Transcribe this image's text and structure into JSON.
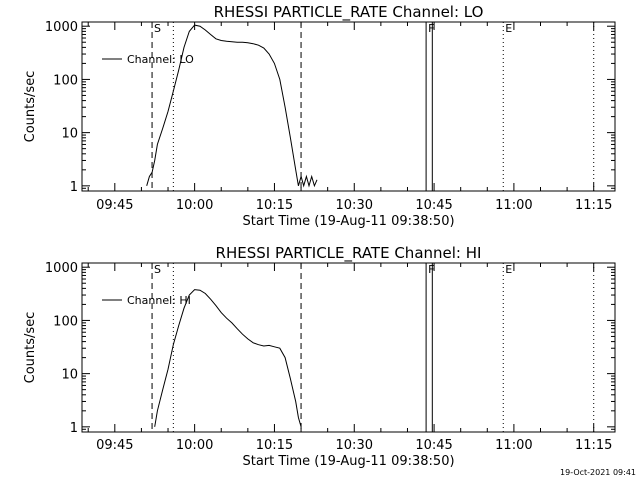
{
  "footer": {
    "timestamp": "19-Oct-2021 09:41"
  },
  "chart_data": [
    {
      "type": "line",
      "title": "RHESSI PARTICLE_RATE Channel: LO",
      "xlabel": "Start Time (19-Aug-11 09:38:50)",
      "ylabel": "Counts/sec",
      "y_scale": "log",
      "ylim": [
        0.8,
        1200
      ],
      "x_unit": "time of day",
      "xlim": [
        "09:38:50",
        "11:19:00"
      ],
      "x_ticks": [
        "09:45",
        "10:00",
        "10:15",
        "10:30",
        "10:45",
        "11:00",
        "11:15"
      ],
      "y_ticks": [
        "1",
        "10",
        "100",
        "1000"
      ],
      "legend": {
        "placement": "top-left",
        "entries": [
          "Channel: LO"
        ]
      },
      "markers": [
        {
          "label": "S",
          "time": "09:52:00",
          "style": "dashed"
        },
        {
          "label": "",
          "time": "09:56:00",
          "style": "dotted"
        },
        {
          "label": "",
          "time": "10:20:00",
          "style": "dashed"
        },
        {
          "label": "F",
          "time": "10:43:30",
          "style": "solid"
        },
        {
          "label": "",
          "time": "10:44:40",
          "style": "solid"
        },
        {
          "label": "E",
          "time": "10:58:00",
          "style": "dotted"
        },
        {
          "label": "",
          "time": "11:15:00",
          "style": "dotted"
        }
      ],
      "series": [
        {
          "name": "Channel: LO",
          "x": [
            "09:51:00",
            "09:51:30",
            "09:52:00",
            "09:52:30",
            "09:53:00",
            "09:54:00",
            "09:55:00",
            "09:56:00",
            "09:57:00",
            "09:58:00",
            "09:59:00",
            "10:00:00",
            "10:01:00",
            "10:02:00",
            "10:03:00",
            "10:04:00",
            "10:05:00",
            "10:06:00",
            "10:07:00",
            "10:08:00",
            "10:09:00",
            "10:10:00",
            "10:11:00",
            "10:12:00",
            "10:13:00",
            "10:14:00",
            "10:15:00",
            "10:16:00",
            "10:17:00",
            "10:18:00",
            "10:19:00",
            "10:19:30",
            "10:20:00",
            "10:20:30",
            "10:21:00",
            "10:21:30",
            "10:22:00",
            "10:22:30",
            "10:23:00"
          ],
          "y": [
            1,
            1.5,
            1.8,
            3,
            6,
            12,
            25,
            60,
            150,
            400,
            800,
            1050,
            1000,
            850,
            700,
            580,
            540,
            520,
            510,
            500,
            500,
            490,
            470,
            440,
            390,
            300,
            200,
            100,
            30,
            8,
            2,
            1,
            1.5,
            1,
            1.5,
            1,
            1.5,
            1,
            1.3
          ]
        }
      ]
    },
    {
      "type": "line",
      "title": "RHESSI PARTICLE_RATE Channel: HI",
      "xlabel": "Start Time (19-Aug-11 09:38:50)",
      "ylabel": "Counts/sec",
      "y_scale": "log",
      "ylim": [
        0.8,
        1200
      ],
      "x_unit": "time of day",
      "xlim": [
        "09:38:50",
        "11:19:00"
      ],
      "x_ticks": [
        "09:45",
        "10:00",
        "10:15",
        "10:30",
        "10:45",
        "11:00",
        "11:15"
      ],
      "y_ticks": [
        "1",
        "10",
        "100",
        "1000"
      ],
      "legend": {
        "placement": "top-left",
        "entries": [
          "Channel: HI"
        ]
      },
      "markers": [
        {
          "label": "S",
          "time": "09:52:00",
          "style": "dashed"
        },
        {
          "label": "",
          "time": "09:56:00",
          "style": "dotted"
        },
        {
          "label": "",
          "time": "10:20:00",
          "style": "dashed"
        },
        {
          "label": "F",
          "time": "10:43:30",
          "style": "solid"
        },
        {
          "label": "",
          "time": "10:44:40",
          "style": "solid"
        },
        {
          "label": "E",
          "time": "10:58:00",
          "style": "dotted"
        },
        {
          "label": "",
          "time": "11:15:00",
          "style": "dotted"
        }
      ],
      "series": [
        {
          "name": "Channel: HI",
          "x": [
            "09:52:30",
            "09:53:00",
            "09:54:00",
            "09:55:00",
            "09:56:00",
            "09:57:00",
            "09:58:00",
            "09:59:00",
            "10:00:00",
            "10:01:00",
            "10:02:00",
            "10:03:00",
            "10:04:00",
            "10:05:00",
            "10:06:00",
            "10:07:00",
            "10:08:00",
            "10:09:00",
            "10:10:00",
            "10:11:00",
            "10:12:00",
            "10:13:00",
            "10:14:00",
            "10:15:00",
            "10:16:00",
            "10:17:00",
            "10:18:00",
            "10:19:00",
            "10:19:30",
            "10:20:00"
          ],
          "y": [
            1,
            2,
            5,
            12,
            35,
            80,
            170,
            300,
            380,
            370,
            320,
            250,
            190,
            140,
            110,
            90,
            70,
            55,
            45,
            38,
            35,
            33,
            34,
            32,
            30,
            20,
            8,
            3,
            1.5,
            1
          ]
        }
      ]
    }
  ]
}
